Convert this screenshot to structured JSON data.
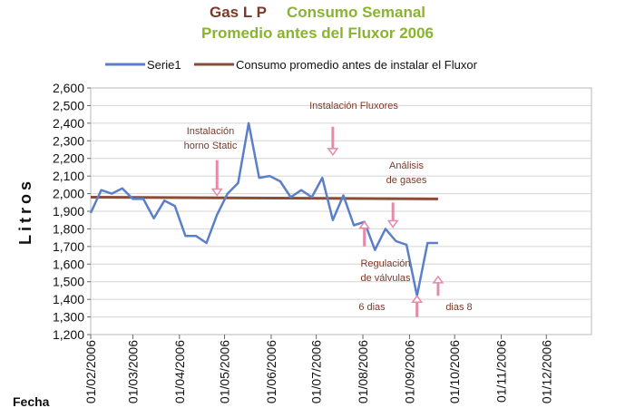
{
  "chart_data": {
    "type": "line",
    "title": {
      "part1": "Gas  L P",
      "part2": "Consumo Semanal",
      "line2": "Promedio antes del Fluxor 2006"
    },
    "ylabel": "Litros",
    "xlabel": "Fecha",
    "ylim": [
      1200,
      2600
    ],
    "yticks": [
      "1,200",
      "1,300",
      "1,400",
      "1,500",
      "1,600",
      "1,700",
      "1,800",
      "1,900",
      "2,000",
      "2,100",
      "2,200",
      "2,300",
      "2,400",
      "2,500",
      "2,600"
    ],
    "xlim": [
      "2006-02-01",
      "2006-12-31"
    ],
    "xticks": [
      {
        "date": "2006-02-01",
        "label": "01/02/2006"
      },
      {
        "date": "2006-03-01",
        "label": "01/03/2006"
      },
      {
        "date": "2006-04-01",
        "label": "01/04/2006"
      },
      {
        "date": "2006-05-01",
        "label": "01/05/2006"
      },
      {
        "date": "2006-06-01",
        "label": "01/06/2006"
      },
      {
        "date": "2006-07-01",
        "label": "01/07/2006"
      },
      {
        "date": "2006-08-01",
        "label": "01/08/2006"
      },
      {
        "date": "2006-09-01",
        "label": "01/09/2006"
      },
      {
        "date": "2006-10-01",
        "label": "01/10/2006"
      },
      {
        "date": "2006-11-01",
        "label": "01/11/2006"
      },
      {
        "date": "2006-12-01",
        "label": "01/12/2006"
      }
    ],
    "grid": "horizontal",
    "legend_position": "top",
    "series": [
      {
        "name": "Serie1",
        "color": "#5b7fc9",
        "x": [
          "2006-02-01",
          "2006-02-08",
          "2006-02-15",
          "2006-02-22",
          "2006-03-01",
          "2006-03-08",
          "2006-03-15",
          "2006-03-22",
          "2006-03-29",
          "2006-04-05",
          "2006-04-12",
          "2006-04-19",
          "2006-04-26",
          "2006-05-03",
          "2006-05-10",
          "2006-05-17",
          "2006-05-24",
          "2006-05-31",
          "2006-06-07",
          "2006-06-14",
          "2006-06-21",
          "2006-06-28",
          "2006-07-05",
          "2006-07-12",
          "2006-07-19",
          "2006-07-26",
          "2006-08-02",
          "2006-08-09",
          "2006-08-16",
          "2006-08-23",
          "2006-08-30",
          "2006-09-06",
          "2006-09-13",
          "2006-09-20"
        ],
        "values": [
          1890,
          2020,
          2000,
          2030,
          1970,
          1970,
          1860,
          1960,
          1930,
          1760,
          1760,
          1720,
          1880,
          2000,
          2060,
          2400,
          2090,
          2100,
          2070,
          1980,
          2020,
          1980,
          2090,
          1850,
          1990,
          1820,
          1840,
          1680,
          1800,
          1730,
          1710,
          1420,
          1720,
          1720
        ]
      },
      {
        "name": "Consumo promedio antes de instalar el Fluxor",
        "color": "#8b4b35",
        "x": [
          "2006-02-01",
          "2006-09-20"
        ],
        "values": [
          1980,
          1970
        ]
      }
    ],
    "annotations": [
      {
        "lines": [
          "Instalación",
          "horno Static"
        ],
        "arrow_date": "2006-04-26",
        "arrow_from": 2190,
        "arrow_to": 1990
      },
      {
        "lines": [
          "Instalación Fluxores"
        ],
        "arrow_date": "2006-07-12",
        "arrow_from": 2380,
        "arrow_to": 2220
      },
      {
        "lines": [
          "Análisis",
          "de gases"
        ],
        "arrow_date": "2006-08-21",
        "arrow_from": 1950,
        "arrow_to": 1810
      },
      {
        "lines": [
          "Regulación",
          "de válvulas"
        ],
        "arrow_date": "2006-08-02",
        "arrow_from": 1700,
        "arrow_to": 1840
      },
      {
        "lines": [
          "6 dias"
        ],
        "arrow_date": "2006-09-06",
        "arrow_from": 1300,
        "arrow_to": 1420
      },
      {
        "lines": [
          "dias 8"
        ],
        "arrow_date": "2006-09-20",
        "arrow_from": 1420,
        "arrow_to": 1530
      }
    ]
  }
}
